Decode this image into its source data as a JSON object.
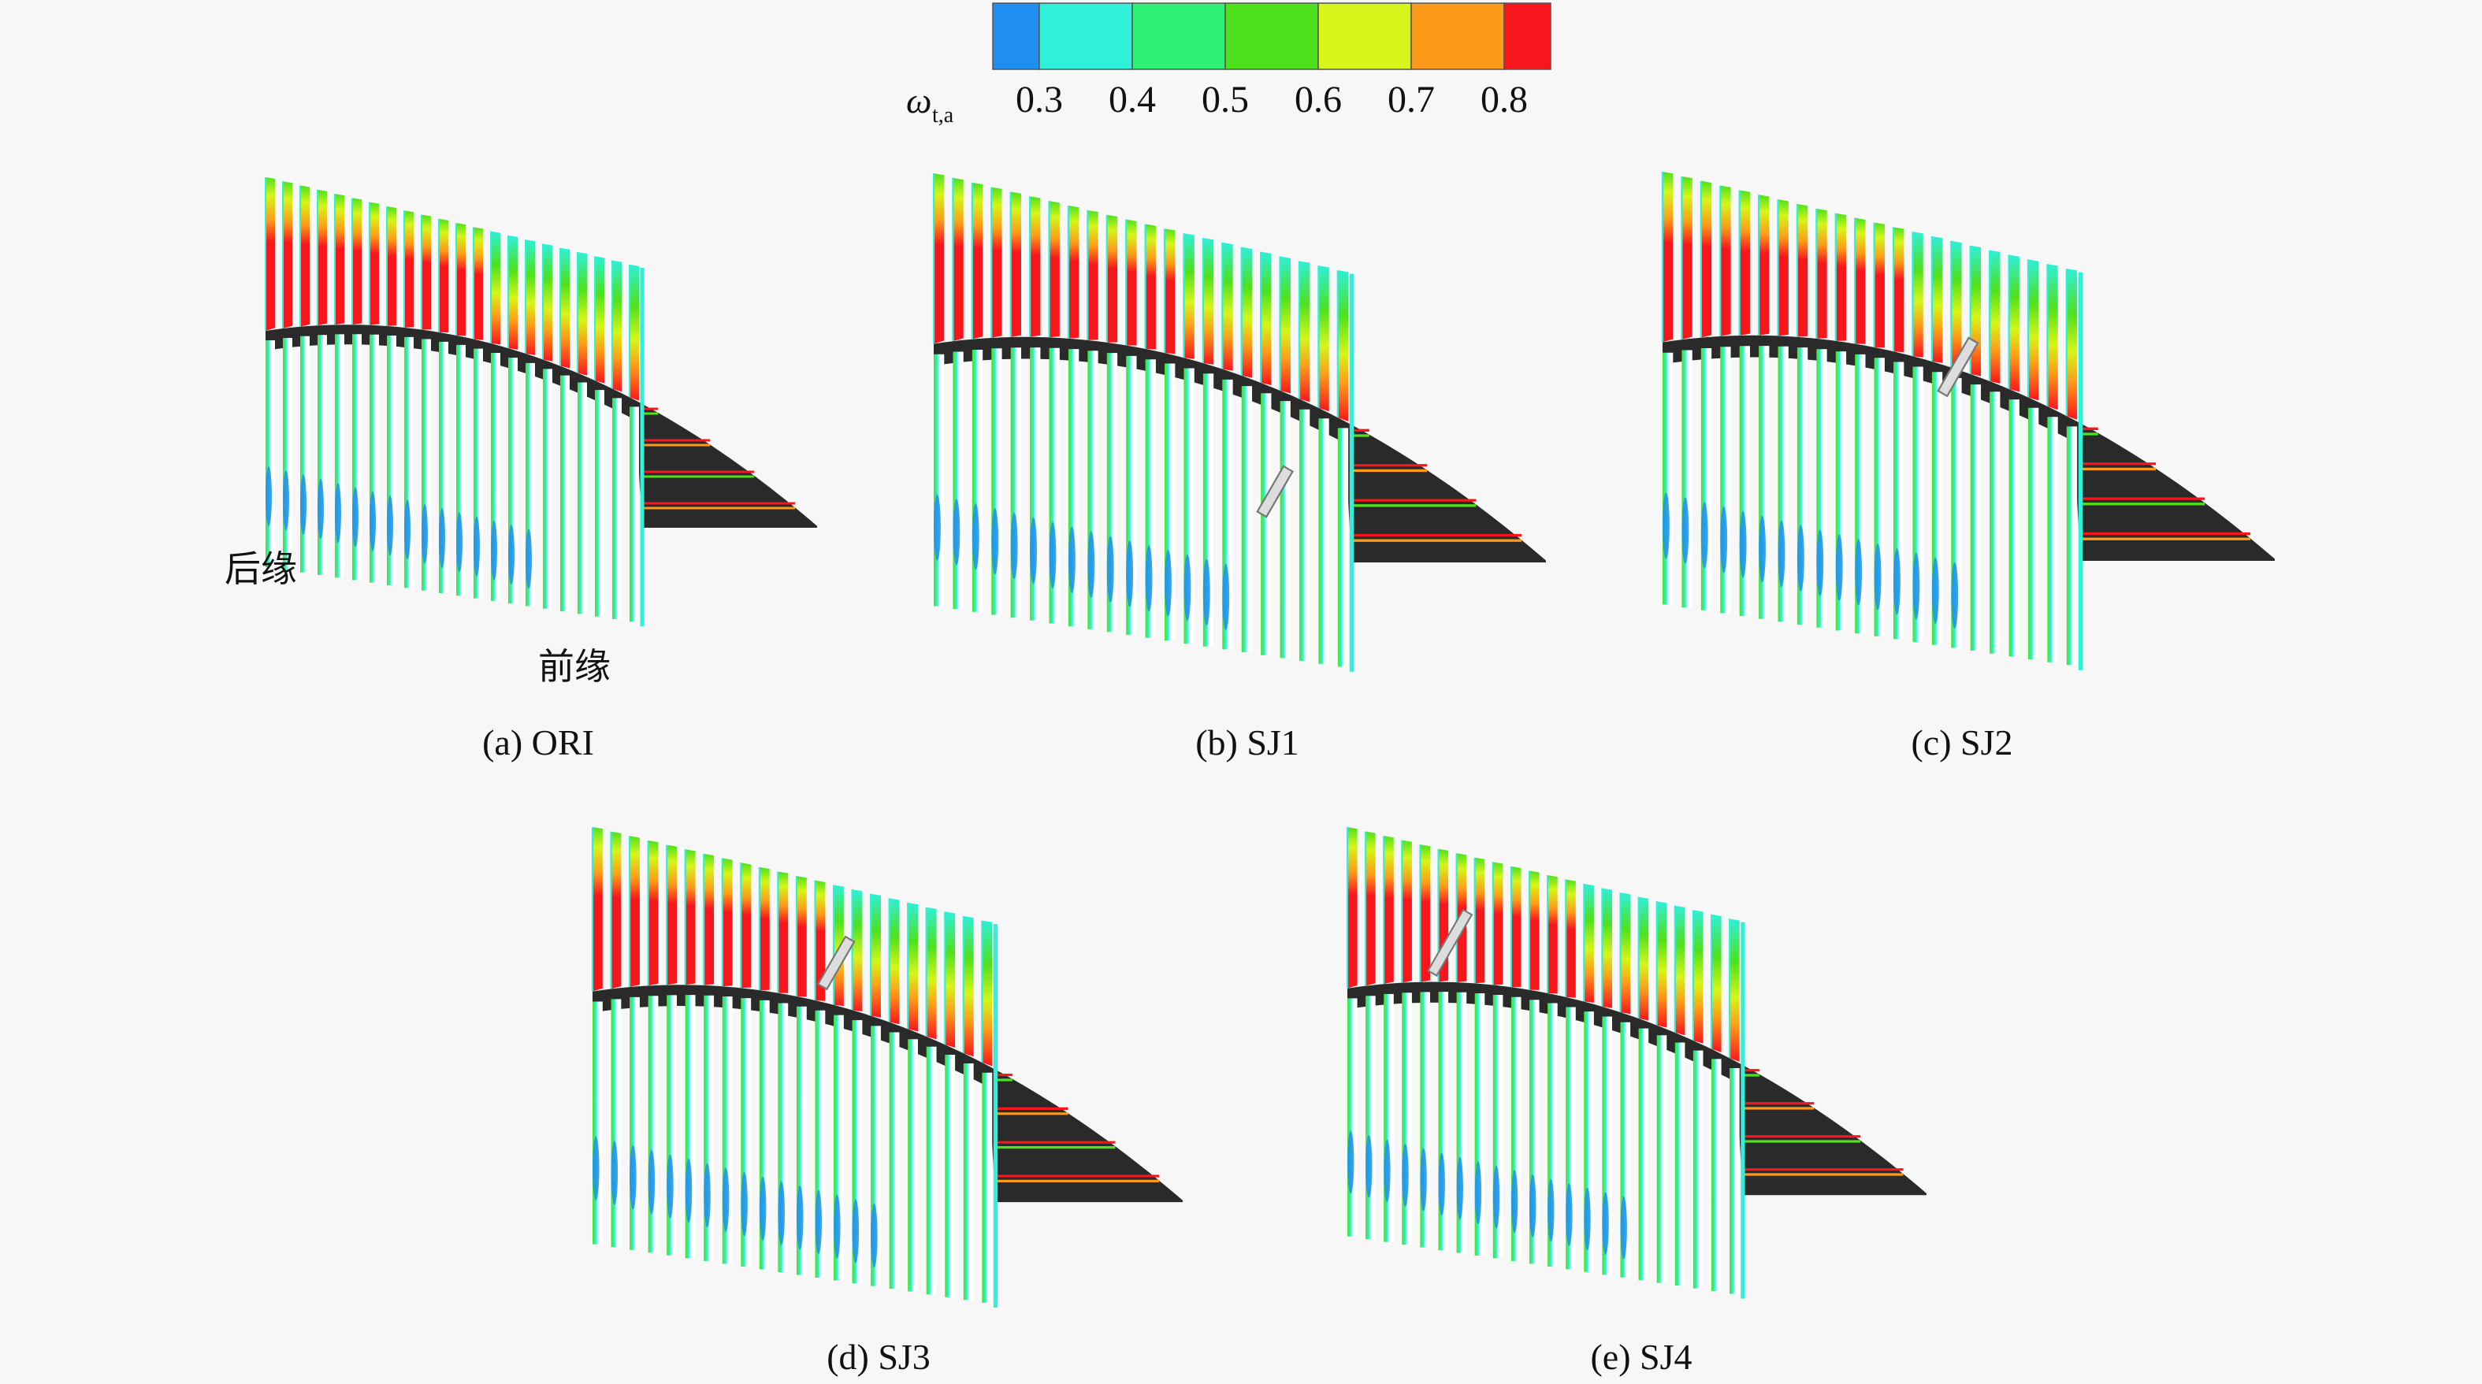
{
  "colorbar": {
    "symbol": "ω",
    "subscript": "t,a",
    "lim": [
      0.25,
      0.85
    ],
    "ticks": [
      0.3,
      0.4,
      0.5,
      0.6,
      0.7,
      0.8
    ],
    "colors": [
      "#1e8ff0",
      "#2ff0d8",
      "#2ef073",
      "#4fe01e",
      "#d6f51a",
      "#fd9a1a",
      "#f7161c"
    ]
  },
  "panels": [
    {
      "caption": "(a) ORI",
      "annotations": {
        "trailing_edge": "后缘",
        "leading_edge": "前缘"
      }
    },
    {
      "caption": "(b) SJ1"
    },
    {
      "caption": "(c) SJ2"
    },
    {
      "caption": "(d) SJ3"
    },
    {
      "caption": "(e) SJ4"
    }
  ]
}
